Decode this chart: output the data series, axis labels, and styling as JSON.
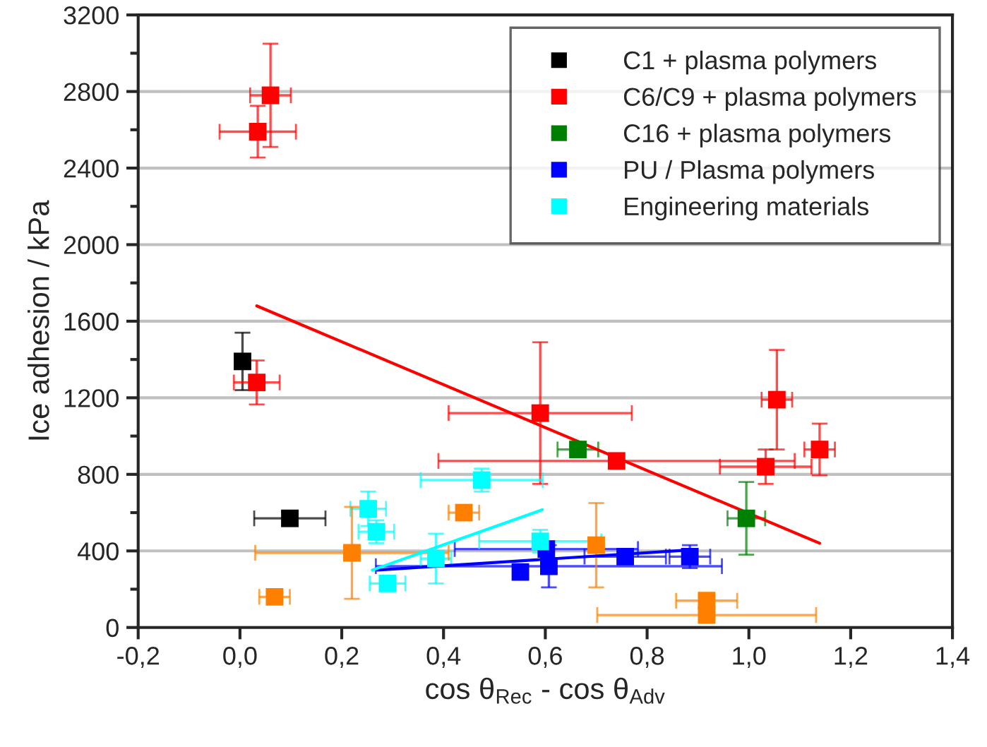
{
  "chart_data": {
    "type": "scatter",
    "xlabel": "cos θ$_{Rec}$ - cos θ$_{Adv}$",
    "ylabel": "Ice adhesion / kPa",
    "xlim": [
      -0.2,
      1.4
    ],
    "ylim": [
      0,
      3200
    ],
    "xticks": [
      {
        "value": -0.2,
        "label": "-0,2"
      },
      {
        "value": 0.0,
        "label": "0,0"
      },
      {
        "value": 0.2,
        "label": "0,2"
      },
      {
        "value": 0.4,
        "label": "0,4"
      },
      {
        "value": 0.6,
        "label": "0,6"
      },
      {
        "value": 0.8,
        "label": "0,8"
      },
      {
        "value": 1.0,
        "label": "1,0"
      },
      {
        "value": 1.2,
        "label": "1,2"
      },
      {
        "value": 1.4,
        "label": "1,4"
      }
    ],
    "yticks": [
      0,
      400,
      800,
      1200,
      1600,
      2000,
      2400,
      2800,
      3200
    ],
    "grid": "y",
    "legend": "top right",
    "marker": "square",
    "series": [
      {
        "name": "C1 + plasma polymers",
        "color": "#000000",
        "x": [
          0.005,
          0.098
        ],
        "values": [
          1390,
          570
        ],
        "errors": [
          150,
          null
        ],
        "xerrors": [
          null,
          0.07
        ]
      },
      {
        "name": "C6/C9 + plasma polymers",
        "color": "#ff0000",
        "x": [
          0.06,
          0.035,
          0.033,
          0.59,
          0.74,
          1.033,
          1.055,
          1.139
        ],
        "values": [
          2780,
          2590,
          1280,
          1120,
          870,
          840,
          1190,
          930
        ],
        "errors": [
          270,
          135,
          115,
          370,
          null,
          90,
          260,
          135
        ],
        "xerrors": [
          0.04,
          0.075,
          0.045,
          0.18,
          0.35,
          0.09,
          0.03,
          0.03
        ]
      },
      {
        "name": "C16 + plasma polymers",
        "color": "#008000",
        "x": [
          0.664,
          0.995
        ],
        "values": [
          930,
          570
        ],
        "errors": [
          30,
          190
        ],
        "xerrors": [
          0.04,
          0.037
        ]
      },
      {
        "name": "PU / Plasma polymers",
        "color": "#0000ff",
        "x": [
          0.551,
          0.607,
          0.602,
          0.757,
          0.884
        ],
        "values": [
          290,
          320,
          410,
          370,
          370
        ],
        "errors": [
          null,
          110,
          null,
          null,
          60
        ],
        "xerrors": [
          null,
          0.34,
          0.18,
          0.08,
          0.04
        ]
      },
      {
        "name": "Engineering materials",
        "color": "#00ffff",
        "x": [
          0.475,
          0.252,
          0.268,
          0.385,
          0.29,
          0.59
        ],
        "values": [
          770,
          620,
          500,
          360,
          230,
          450
        ],
        "errors": [
          60,
          90,
          60,
          130,
          30,
          60
        ],
        "xerrors": [
          0.12,
          0.035,
          0.035,
          0.03,
          0.035,
          0.12
        ]
      },
      {
        "color": "#ff8000",
        "x": [
          0.068,
          0.22,
          0.44,
          0.7,
          0.917,
          0.917
        ],
        "values": [
          160,
          390,
          600,
          430,
          140,
          65
        ],
        "errors": [
          null,
          240,
          null,
          220,
          null,
          null
        ],
        "xerrors": [
          0.03,
          0.19,
          0.03,
          null,
          0.06,
          0.215
        ]
      },
      {
        "type": "line",
        "marker": "none",
        "color": "#ff0000",
        "x": [
          0.033,
          1.139
        ],
        "values": [
          1680,
          440
        ]
      },
      {
        "type": "line",
        "marker": "none",
        "color": "#0000ff",
        "x": [
          0.27,
          0.885
        ],
        "values": [
          300,
          405
        ]
      },
      {
        "type": "line",
        "marker": "none",
        "color": "#00ffff",
        "x": [
          0.26,
          0.594
        ],
        "values": [
          300,
          615
        ]
      }
    ]
  }
}
